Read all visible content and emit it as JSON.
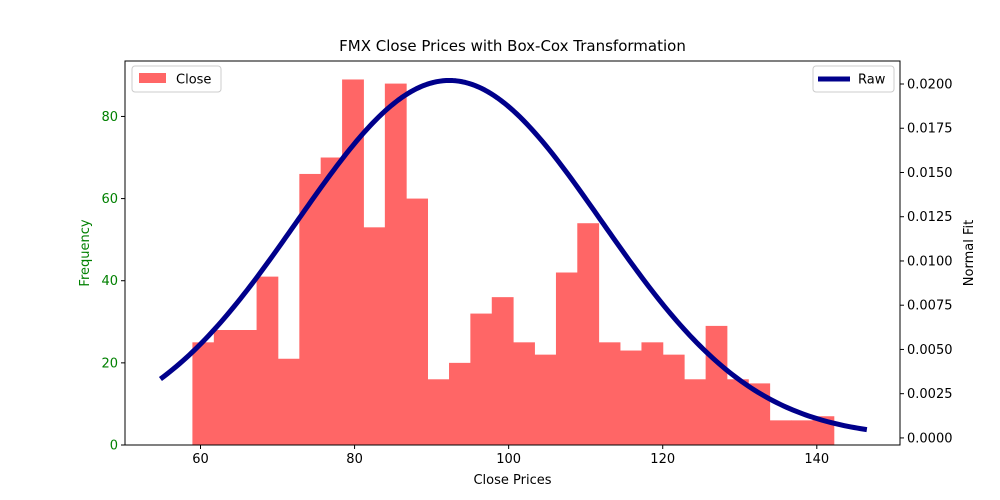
{
  "chart_data": {
    "type": "bar",
    "title": "FMX Close Prices with Box-Cox Transformation",
    "xlabel": "Close Prices",
    "ylabel_left": "Frequency",
    "ylabel_right": "Normal Fit",
    "xlim": [
      50.2,
      150.8
    ],
    "ylim_left": [
      0,
      93.5
    ],
    "ylim_right": [
      -0.0004,
      0.0213
    ],
    "x_ticks": [
      60,
      80,
      100,
      120,
      140
    ],
    "y_left_ticks": [
      0,
      20,
      40,
      60,
      80
    ],
    "y_right_ticks": [
      "0.0000",
      "0.0025",
      "0.0050",
      "0.0075",
      "0.0100",
      "0.0125",
      "0.0150",
      "0.0175",
      "0.0200"
    ],
    "histogram": {
      "name": "Close",
      "color": "#ff6666",
      "bin_edges": [
        58.95,
        61.73,
        64.5,
        67.28,
        70.05,
        72.83,
        75.6,
        78.38,
        81.16,
        83.93,
        86.71,
        89.48,
        92.26,
        95.03,
        97.81,
        100.59,
        103.36,
        106.14,
        108.91,
        111.69,
        114.46,
        117.24,
        120.02,
        122.79,
        125.57,
        128.34,
        131.12,
        133.89,
        136.67,
        139.45,
        142.22
      ],
      "counts": [
        25,
        28,
        28,
        41,
        21,
        66,
        70,
        89,
        53,
        88,
        60,
        16,
        20,
        32,
        36,
        25,
        22,
        42,
        54,
        25,
        23,
        25,
        22,
        16,
        29,
        16,
        15,
        6,
        6,
        7
      ]
    },
    "normal_fit": {
      "name": "Raw",
      "color": "#00008b",
      "mean": 92.3,
      "std": 19.75,
      "x_range": [
        54.8,
        146.5
      ]
    },
    "legend_left": {
      "label": "Close",
      "placement": "top-left"
    },
    "legend_right": {
      "label": "Raw",
      "placement": "top-right"
    },
    "colors": {
      "left_axis": "#008000",
      "bars": "#ff6666",
      "line": "#00008b"
    },
    "grid": false
  }
}
